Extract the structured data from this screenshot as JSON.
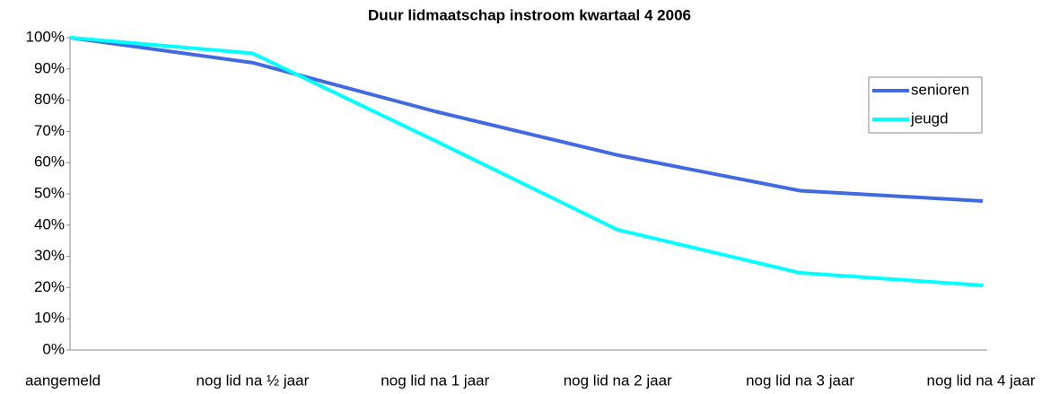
{
  "chart_data": {
    "type": "line",
    "title": "Duur lidmaatschap instroom kwartaal 4 2006",
    "categories": [
      "aangemeld",
      "nog lid na ½ jaar",
      "nog lid na 1 jaar",
      "nog lid na 2 jaar",
      "nog lid na 3 jaar",
      "nog lid na 4 jaar"
    ],
    "series": [
      {
        "name": "senioren",
        "color": "#4169e1",
        "values": [
          100,
          92,
          76.4,
          62.4,
          51,
          47.7
        ]
      },
      {
        "name": "jeugd",
        "color": "#00ffff",
        "values": [
          100,
          95,
          67,
          38.5,
          24.7,
          20.7
        ]
      }
    ],
    "ylim": [
      0,
      100
    ],
    "yticks": [
      {
        "value": 0,
        "label": "0%"
      },
      {
        "value": 10,
        "label": "10%"
      },
      {
        "value": 20,
        "label": "20%"
      },
      {
        "value": 30,
        "label": "30%"
      },
      {
        "value": 40,
        "label": "40%"
      },
      {
        "value": 50,
        "label": "50%"
      },
      {
        "value": 60,
        "label": "60%"
      },
      {
        "value": 70,
        "label": "70%"
      },
      {
        "value": 80,
        "label": "80%"
      },
      {
        "value": 90,
        "label": "90%"
      },
      {
        "value": 100,
        "label": "100%"
      }
    ],
    "legend": "right"
  }
}
